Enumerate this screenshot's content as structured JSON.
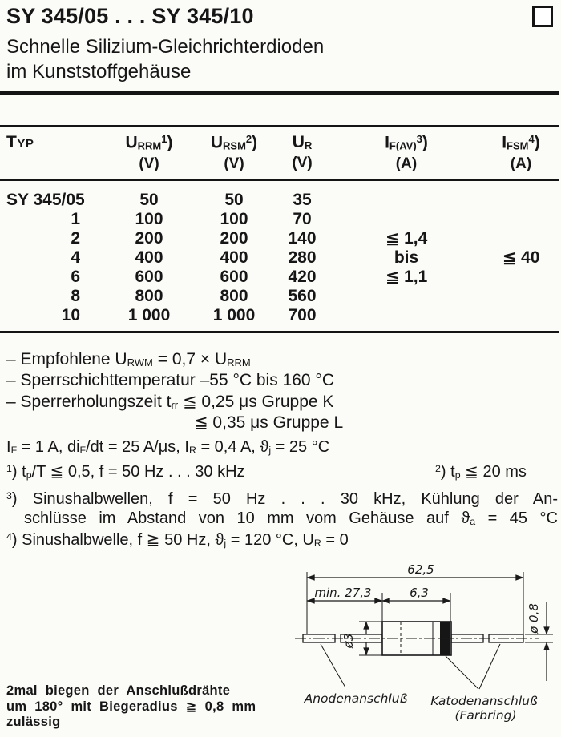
{
  "doc": {
    "title": "SY 345/05 . . . SY 345/10",
    "subtitle1": "Schnelle Silizium-Gleichrichterdioden",
    "subtitle2": "im Kunststoffgehäuse"
  },
  "table": {
    "header": {
      "typ": "Typ",
      "col1": [
        {
          "t": "n",
          "v": "U"
        },
        {
          "t": "b",
          "v": "RRM"
        },
        {
          "t": "p",
          "v": "1"
        },
        {
          "t": "n",
          "v": ")"
        }
      ],
      "col1_unit": "(V)",
      "col2": [
        {
          "t": "n",
          "v": "U"
        },
        {
          "t": "b",
          "v": "RSM"
        },
        {
          "t": "p",
          "v": "2"
        },
        {
          "t": "n",
          "v": ")"
        }
      ],
      "col2_unit": "(V)",
      "col3": [
        {
          "t": "n",
          "v": "U"
        },
        {
          "t": "b",
          "v": "R"
        }
      ],
      "col3_unit": "(V)",
      "col4": [
        {
          "t": "n",
          "v": "I"
        },
        {
          "t": "b",
          "v": "F(AV)"
        },
        {
          "t": "p",
          "v": "3"
        },
        {
          "t": "n",
          "v": ")"
        }
      ],
      "col4_unit": "(A)",
      "col5": [
        {
          "t": "n",
          "v": "I"
        },
        {
          "t": "b",
          "v": "FSM"
        },
        {
          "t": "p",
          "v": "4"
        },
        {
          "t": "n",
          "v": ")"
        }
      ],
      "col5_unit": "(A)"
    },
    "rows": [
      {
        "typ": "SY 345/05",
        "urrm": "50",
        "ursm": "50",
        "ur": "35",
        "ifav": "",
        "ifsm": ""
      },
      {
        "typ": "1",
        "urrm": "100",
        "ursm": "100",
        "ur": "70",
        "ifav": "",
        "ifsm": ""
      },
      {
        "typ": "2",
        "urrm": "200",
        "ursm": "200",
        "ur": "140",
        "ifav": "≦ 1,4",
        "ifsm": ""
      },
      {
        "typ": "4",
        "urrm": "400",
        "ursm": "400",
        "ur": "280",
        "ifav": "bis",
        "ifsm": "≦ 40"
      },
      {
        "typ": "6",
        "urrm": "600",
        "ursm": "600",
        "ur": "420",
        "ifav": "≦ 1,1",
        "ifsm": ""
      },
      {
        "typ": "8",
        "urrm": "800",
        "ursm": "800",
        "ur": "560",
        "ifav": "",
        "ifsm": ""
      },
      {
        "typ": "10",
        "urrm": "1 000",
        "ursm": "1 000",
        "ur": "700",
        "ifav": "",
        "ifsm": ""
      }
    ]
  },
  "notes": {
    "line1": [
      {
        "t": "n",
        "v": "– Empfohlene U"
      },
      {
        "t": "b",
        "v": "RWM"
      },
      {
        "t": "n",
        "v": " = 0,7 × U"
      },
      {
        "t": "b",
        "v": "RRM"
      }
    ],
    "line2": [
      {
        "t": "n",
        "v": "– Sperrschichttemperatur –55 °C bis 160 °C"
      }
    ],
    "line3": [
      {
        "t": "n",
        "v": "– Sperrerholungszeit t"
      },
      {
        "t": "b",
        "v": "rr"
      },
      {
        "t": "n",
        "v": " ≦ 0,25 μs Gruppe K"
      }
    ],
    "line4": [
      {
        "t": "n",
        "v": "≦ 0,35 μs Gruppe L"
      }
    ]
  },
  "conditions": {
    "line1": [
      {
        "t": "n",
        "v": "I"
      },
      {
        "t": "b",
        "v": "F"
      },
      {
        "t": "n",
        "v": " = 1 A, di"
      },
      {
        "t": "b",
        "v": "F"
      },
      {
        "t": "n",
        "v": "/dt = 25 A/μs, I"
      },
      {
        "t": "b",
        "v": "R"
      },
      {
        "t": "n",
        "v": " = 0,4 A, ϑ"
      },
      {
        "t": "b",
        "v": "j"
      },
      {
        "t": "n",
        "v": " = 25 °C"
      }
    ],
    "fn1": [
      {
        "t": "p",
        "v": "1"
      },
      {
        "t": "n",
        "v": ") t"
      },
      {
        "t": "b",
        "v": "p"
      },
      {
        "t": "n",
        "v": "/T ≦ 0,5, f = 50 Hz . . . 30 kHz"
      }
    ],
    "fn2": [
      {
        "t": "p",
        "v": "2"
      },
      {
        "t": "n",
        "v": ") t"
      },
      {
        "t": "b",
        "v": "p"
      },
      {
        "t": "n",
        "v": " ≦ 20 ms"
      }
    ],
    "fn3a": [
      {
        "t": "p",
        "v": "3"
      },
      {
        "t": "n",
        "v": ") Sinushalbwellen, f = 50 Hz . . . 30 kHz, Kühlung der An-"
      }
    ],
    "fn3b": [
      {
        "t": "n",
        "v": "schlüsse im Abstand von 10 mm vom Gehäuse auf ϑ"
      },
      {
        "t": "b",
        "v": "a"
      },
      {
        "t": "n",
        "v": " = 45 °C"
      }
    ],
    "fn4": [
      {
        "t": "p",
        "v": "4"
      },
      {
        "t": "n",
        "v": ") Sinushalbwelle, f ≧ 50 Hz, ϑ"
      },
      {
        "t": "b",
        "v": "j"
      },
      {
        "t": "n",
        "v": " = 120 °C, U"
      },
      {
        "t": "b",
        "v": "R"
      },
      {
        "t": "n",
        "v": " = 0"
      }
    ]
  },
  "bend_note": {
    "line1": "2mal biegen der Anschlußdrähte",
    "line2": "um 180° mit Biegeradius ≧ 0,8 mm",
    "line3": "zulässig"
  },
  "drawing": {
    "dim_total": "62,5",
    "dim_lead_min": "min. 27,3",
    "dim_body_len": "6,3",
    "dim_body_dia": "ø3",
    "dim_wire_dia": "ø 0,8",
    "label_anode": "Anodenanschluß",
    "label_cathode1": "Katodenanschluß",
    "label_cathode2": "(Farbring)"
  },
  "colors": {
    "paper": "#fbfbf8",
    "ink": "#161616"
  }
}
